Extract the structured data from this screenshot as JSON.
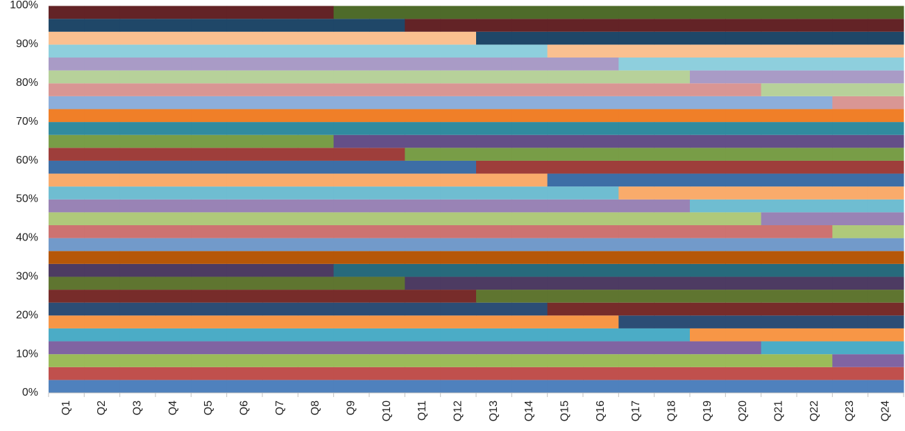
{
  "chart_data": {
    "type": "bar",
    "stacked": true,
    "categories": [
      "Q1",
      "Q2",
      "Q3",
      "Q4",
      "Q5",
      "Q6",
      "Q7",
      "Q8",
      "Q9",
      "Q10",
      "Q11",
      "Q12",
      "Q13",
      "Q14",
      "Q15",
      "Q16",
      "Q17",
      "Q18",
      "Q19",
      "Q20",
      "Q21",
      "Q22",
      "Q23",
      "Q24"
    ],
    "ylim": [
      0,
      100
    ],
    "yticks": [
      {
        "value": 0,
        "label": "0%"
      },
      {
        "value": 10,
        "label": "10%"
      },
      {
        "value": 20,
        "label": "20%"
      },
      {
        "value": 30,
        "label": "30%"
      },
      {
        "value": 40,
        "label": "40%"
      },
      {
        "value": 50,
        "label": "50%"
      },
      {
        "value": 60,
        "label": "60%"
      },
      {
        "value": 70,
        "label": "70%"
      },
      {
        "value": 80,
        "label": "80%"
      },
      {
        "value": 90,
        "label": "90%"
      },
      {
        "value": 100,
        "label": "100%"
      }
    ],
    "series": [
      {
        "color": "#4F81BD",
        "values": [
          3.33,
          3.33,
          3.33,
          3.33,
          3.33,
          3.33,
          3.33,
          3.33,
          3.33,
          3.33,
          3.33,
          3.33,
          3.33,
          3.33,
          3.33,
          3.33,
          3.33,
          3.33,
          3.33,
          3.33,
          3.33,
          3.33,
          3.33,
          3.33
        ]
      },
      {
        "color": "#C0504D",
        "values": [
          3.33,
          3.33,
          3.33,
          3.33,
          3.33,
          3.33,
          3.33,
          3.33,
          3.33,
          3.33,
          3.33,
          3.33,
          3.33,
          3.33,
          3.33,
          3.33,
          3.33,
          3.33,
          3.33,
          3.33,
          3.33,
          3.33,
          3.33,
          3.33
        ]
      },
      {
        "color": "#9BBB59",
        "values": [
          3.33,
          3.33,
          3.33,
          3.33,
          3.33,
          3.33,
          3.33,
          3.33,
          3.33,
          3.33,
          3.33,
          3.33,
          3.33,
          3.33,
          3.33,
          3.33,
          3.33,
          3.33,
          3.33,
          3.33,
          3.33,
          3.33,
          0,
          0
        ]
      },
      {
        "color": "#8064A2",
        "values": [
          3.33,
          3.33,
          3.33,
          3.33,
          3.33,
          3.33,
          3.33,
          3.33,
          3.33,
          3.33,
          3.33,
          3.33,
          3.33,
          3.33,
          3.33,
          3.33,
          3.33,
          3.33,
          3.33,
          3.33,
          0,
          0,
          3.33,
          3.33
        ]
      },
      {
        "color": "#4BACC6",
        "values": [
          3.33,
          3.33,
          3.33,
          3.33,
          3.33,
          3.33,
          3.33,
          3.33,
          3.33,
          3.33,
          3.33,
          3.33,
          3.33,
          3.33,
          3.33,
          3.33,
          3.33,
          3.33,
          0,
          0,
          3.33,
          3.33,
          3.33,
          3.33
        ]
      },
      {
        "color": "#F79646",
        "values": [
          3.33,
          3.33,
          3.33,
          3.33,
          3.33,
          3.33,
          3.33,
          3.33,
          3.33,
          3.33,
          3.33,
          3.33,
          3.33,
          3.33,
          3.33,
          3.33,
          0,
          0,
          3.33,
          3.33,
          3.33,
          3.33,
          3.33,
          3.33
        ]
      },
      {
        "color": "#2C4D75",
        "values": [
          3.33,
          3.33,
          3.33,
          3.33,
          3.33,
          3.33,
          3.33,
          3.33,
          3.33,
          3.33,
          3.33,
          3.33,
          3.33,
          3.33,
          0,
          0,
          3.33,
          3.33,
          3.33,
          3.33,
          3.33,
          3.33,
          3.33,
          3.33
        ]
      },
      {
        "color": "#772C2A",
        "values": [
          3.33,
          3.33,
          3.33,
          3.33,
          3.33,
          3.33,
          3.33,
          3.33,
          3.33,
          3.33,
          3.33,
          3.33,
          0,
          0,
          3.33,
          3.33,
          3.33,
          3.33,
          3.33,
          3.33,
          3.33,
          3.33,
          3.33,
          3.33
        ]
      },
      {
        "color": "#5F7530",
        "values": [
          3.33,
          3.33,
          3.33,
          3.33,
          3.33,
          3.33,
          3.33,
          3.33,
          3.33,
          3.33,
          0,
          0,
          3.33,
          3.33,
          3.33,
          3.33,
          3.33,
          3.33,
          3.33,
          3.33,
          3.33,
          3.33,
          3.33,
          3.33
        ]
      },
      {
        "color": "#4D3B62",
        "values": [
          3.33,
          3.33,
          3.33,
          3.33,
          3.33,
          3.33,
          3.33,
          3.33,
          0,
          0,
          3.33,
          3.33,
          3.33,
          3.33,
          3.33,
          3.33,
          3.33,
          3.33,
          3.33,
          3.33,
          3.33,
          3.33,
          3.33,
          3.33
        ]
      },
      {
        "color": "#276A7C",
        "values": [
          0,
          0,
          0,
          0,
          0,
          0,
          0,
          0,
          3.33,
          3.33,
          3.33,
          3.33,
          3.33,
          3.33,
          3.33,
          3.33,
          3.33,
          3.33,
          3.33,
          3.33,
          3.33,
          3.33,
          3.33,
          3.33
        ]
      },
      {
        "color": "#B65708",
        "values": [
          3.33,
          3.33,
          3.33,
          3.33,
          3.33,
          3.33,
          3.33,
          3.33,
          3.33,
          3.33,
          3.33,
          3.33,
          3.33,
          3.33,
          3.33,
          3.33,
          3.33,
          3.33,
          3.33,
          3.33,
          3.33,
          3.33,
          3.33,
          3.33
        ]
      },
      {
        "color": "#729ACA",
        "values": [
          3.33,
          3.33,
          3.33,
          3.33,
          3.33,
          3.33,
          3.33,
          3.33,
          3.33,
          3.33,
          3.33,
          3.33,
          3.33,
          3.33,
          3.33,
          3.33,
          3.33,
          3.33,
          3.33,
          3.33,
          3.33,
          3.33,
          3.33,
          3.33
        ]
      },
      {
        "color": "#CD7371",
        "values": [
          3.33,
          3.33,
          3.33,
          3.33,
          3.33,
          3.33,
          3.33,
          3.33,
          3.33,
          3.33,
          3.33,
          3.33,
          3.33,
          3.33,
          3.33,
          3.33,
          3.33,
          3.33,
          3.33,
          3.33,
          3.33,
          3.33,
          0,
          0
        ]
      },
      {
        "color": "#AFC97A",
        "values": [
          3.33,
          3.33,
          3.33,
          3.33,
          3.33,
          3.33,
          3.33,
          3.33,
          3.33,
          3.33,
          3.33,
          3.33,
          3.33,
          3.33,
          3.33,
          3.33,
          3.33,
          3.33,
          3.33,
          3.33,
          0,
          0,
          3.33,
          3.33
        ]
      },
      {
        "color": "#9983B5",
        "values": [
          3.33,
          3.33,
          3.33,
          3.33,
          3.33,
          3.33,
          3.33,
          3.33,
          3.33,
          3.33,
          3.33,
          3.33,
          3.33,
          3.33,
          3.33,
          3.33,
          3.33,
          3.33,
          0,
          0,
          3.33,
          3.33,
          3.33,
          3.33
        ]
      },
      {
        "color": "#6FBDD1",
        "values": [
          3.33,
          3.33,
          3.33,
          3.33,
          3.33,
          3.33,
          3.33,
          3.33,
          3.33,
          3.33,
          3.33,
          3.33,
          3.33,
          3.33,
          3.33,
          3.33,
          0,
          0,
          3.33,
          3.33,
          3.33,
          3.33,
          3.33,
          3.33
        ]
      },
      {
        "color": "#F9AB6B",
        "values": [
          3.33,
          3.33,
          3.33,
          3.33,
          3.33,
          3.33,
          3.33,
          3.33,
          3.33,
          3.33,
          3.33,
          3.33,
          3.33,
          3.33,
          0,
          0,
          3.33,
          3.33,
          3.33,
          3.33,
          3.33,
          3.33,
          3.33,
          3.33
        ]
      },
      {
        "color": "#3D6EA6",
        "values": [
          3.33,
          3.33,
          3.33,
          3.33,
          3.33,
          3.33,
          3.33,
          3.33,
          3.33,
          3.33,
          3.33,
          3.33,
          0,
          0,
          3.33,
          3.33,
          3.33,
          3.33,
          3.33,
          3.33,
          3.33,
          3.33,
          3.33,
          3.33
        ]
      },
      {
        "color": "#9E3E3B",
        "values": [
          3.33,
          3.33,
          3.33,
          3.33,
          3.33,
          3.33,
          3.33,
          3.33,
          3.33,
          3.33,
          0,
          0,
          3.33,
          3.33,
          3.33,
          3.33,
          3.33,
          3.33,
          3.33,
          3.33,
          3.33,
          3.33,
          3.33,
          3.33
        ]
      },
      {
        "color": "#789D47",
        "values": [
          3.33,
          3.33,
          3.33,
          3.33,
          3.33,
          3.33,
          3.33,
          3.33,
          0,
          0,
          3.33,
          3.33,
          3.33,
          3.33,
          3.33,
          3.33,
          3.33,
          3.33,
          3.33,
          3.33,
          3.33,
          3.33,
          3.33,
          3.33
        ]
      },
      {
        "color": "#644F88",
        "values": [
          0,
          0,
          0,
          0,
          0,
          0,
          0,
          0,
          3.33,
          3.33,
          3.33,
          3.33,
          3.33,
          3.33,
          3.33,
          3.33,
          3.33,
          3.33,
          3.33,
          3.33,
          3.33,
          3.33,
          3.33,
          3.33
        ]
      },
      {
        "color": "#318B9F",
        "values": [
          3.33,
          3.33,
          3.33,
          3.33,
          3.33,
          3.33,
          3.33,
          3.33,
          3.33,
          3.33,
          3.33,
          3.33,
          3.33,
          3.33,
          3.33,
          3.33,
          3.33,
          3.33,
          3.33,
          3.33,
          3.33,
          3.33,
          3.33,
          3.33
        ]
      },
      {
        "color": "#F07F28",
        "values": [
          3.33,
          3.33,
          3.33,
          3.33,
          3.33,
          3.33,
          3.33,
          3.33,
          3.33,
          3.33,
          3.33,
          3.33,
          3.33,
          3.33,
          3.33,
          3.33,
          3.33,
          3.33,
          3.33,
          3.33,
          3.33,
          3.33,
          3.33,
          3.33
        ]
      },
      {
        "color": "#8CAEDB",
        "values": [
          3.33,
          3.33,
          3.33,
          3.33,
          3.33,
          3.33,
          3.33,
          3.33,
          3.33,
          3.33,
          3.33,
          3.33,
          3.33,
          3.33,
          3.33,
          3.33,
          3.33,
          3.33,
          3.33,
          3.33,
          3.33,
          3.33,
          0,
          0
        ]
      },
      {
        "color": "#D99694",
        "values": [
          3.33,
          3.33,
          3.33,
          3.33,
          3.33,
          3.33,
          3.33,
          3.33,
          3.33,
          3.33,
          3.33,
          3.33,
          3.33,
          3.33,
          3.33,
          3.33,
          3.33,
          3.33,
          3.33,
          3.33,
          0,
          0,
          3.33,
          3.33
        ]
      },
      {
        "color": "#B7D19A",
        "values": [
          3.33,
          3.33,
          3.33,
          3.33,
          3.33,
          3.33,
          3.33,
          3.33,
          3.33,
          3.33,
          3.33,
          3.33,
          3.33,
          3.33,
          3.33,
          3.33,
          3.33,
          3.33,
          0,
          0,
          3.33,
          3.33,
          3.33,
          3.33
        ]
      },
      {
        "color": "#A99BC6",
        "values": [
          3.33,
          3.33,
          3.33,
          3.33,
          3.33,
          3.33,
          3.33,
          3.33,
          3.33,
          3.33,
          3.33,
          3.33,
          3.33,
          3.33,
          3.33,
          3.33,
          0,
          0,
          3.33,
          3.33,
          3.33,
          3.33,
          3.33,
          3.33
        ]
      },
      {
        "color": "#8ECFDD",
        "values": [
          3.33,
          3.33,
          3.33,
          3.33,
          3.33,
          3.33,
          3.33,
          3.33,
          3.33,
          3.33,
          3.33,
          3.33,
          3.33,
          3.33,
          0,
          0,
          3.33,
          3.33,
          3.33,
          3.33,
          3.33,
          3.33,
          3.33,
          3.33
        ]
      },
      {
        "color": "#FAC090",
        "values": [
          3.33,
          3.33,
          3.33,
          3.33,
          3.33,
          3.33,
          3.33,
          3.33,
          3.33,
          3.33,
          3.33,
          3.33,
          0,
          0,
          3.33,
          3.33,
          3.33,
          3.33,
          3.33,
          3.33,
          3.33,
          3.33,
          3.33,
          3.33
        ]
      },
      {
        "color": "#1F4768",
        "values": [
          3.33,
          3.33,
          3.33,
          3.33,
          3.33,
          3.33,
          3.33,
          3.33,
          3.33,
          3.33,
          0,
          0,
          3.33,
          3.33,
          3.33,
          3.33,
          3.33,
          3.33,
          3.33,
          3.33,
          3.33,
          3.33,
          3.33,
          3.33
        ]
      },
      {
        "color": "#632326",
        "values": [
          3.33,
          3.33,
          3.33,
          3.33,
          3.33,
          3.33,
          3.33,
          3.33,
          0,
          0,
          3.33,
          3.33,
          3.33,
          3.33,
          3.33,
          3.33,
          3.33,
          3.33,
          3.33,
          3.33,
          3.33,
          3.33,
          3.33,
          3.33
        ]
      },
      {
        "color": "#4E6B2A",
        "values": [
          0,
          0,
          0,
          0,
          0,
          0,
          0,
          0,
          3.33,
          3.33,
          3.33,
          3.33,
          3.33,
          3.33,
          3.33,
          3.33,
          3.33,
          3.33,
          3.33,
          3.33,
          3.33,
          3.33,
          3.33,
          3.33
        ]
      }
    ]
  }
}
